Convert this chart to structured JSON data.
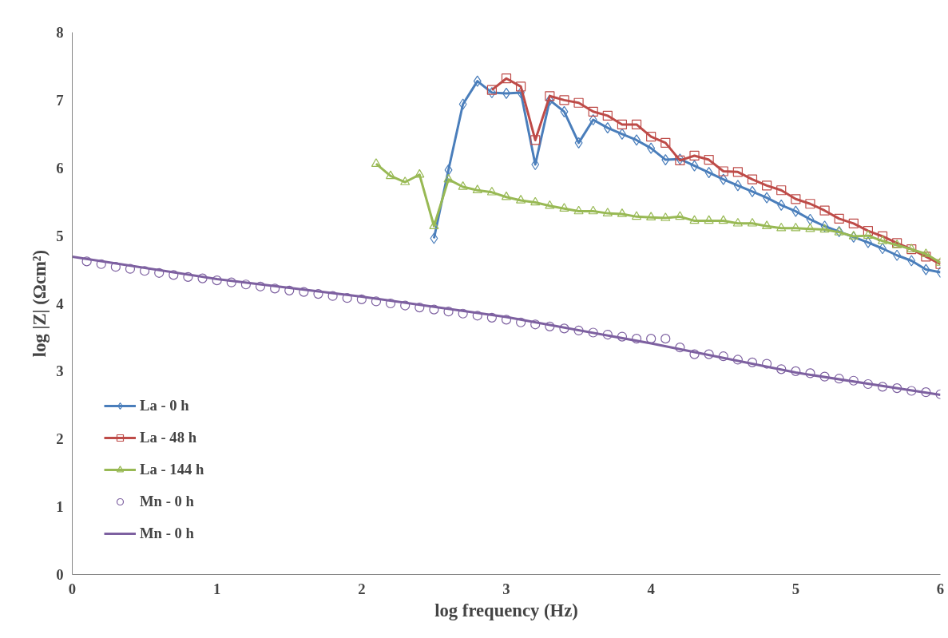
{
  "chart_data": {
    "type": "line",
    "xlabel": "log frequency (Hz)",
    "ylabel": "log |Z| (Ωcm²)",
    "xlim": [
      0,
      6
    ],
    "ylim": [
      0,
      8
    ],
    "xticks": [
      0,
      1,
      2,
      3,
      4,
      5,
      6
    ],
    "yticks": [
      0,
      1,
      2,
      3,
      4,
      5,
      6,
      7,
      8
    ],
    "grid": false,
    "legend": "bottom left",
    "series": [
      {
        "name": "La - 0 h",
        "color": "#4a7ebb",
        "marker": "diamond",
        "x": [
          2.5,
          2.6,
          2.7,
          2.8,
          2.9,
          3.0,
          3.1,
          3.2,
          3.3,
          3.4,
          3.5,
          3.6,
          3.7,
          3.8,
          3.9,
          4.0,
          4.1,
          4.2,
          4.3,
          4.4,
          4.5,
          4.6,
          4.7,
          4.8,
          4.9,
          5.0,
          5.1,
          5.2,
          5.3,
          5.4,
          5.5,
          5.6,
          5.7,
          5.8,
          5.9,
          6.0
        ],
        "values": [
          4.96,
          5.97,
          6.94,
          7.28,
          7.11,
          7.1,
          7.11,
          6.05,
          7.0,
          6.83,
          6.37,
          6.71,
          6.59,
          6.5,
          6.41,
          6.29,
          6.12,
          6.13,
          6.03,
          5.93,
          5.83,
          5.74,
          5.65,
          5.56,
          5.45,
          5.36,
          5.24,
          5.14,
          5.06,
          4.98,
          4.9,
          4.81,
          4.71,
          4.63,
          4.5,
          4.46
        ]
      },
      {
        "name": "La - 48 h",
        "color": "#be4b48",
        "marker": "square",
        "x": [
          2.9,
          3.0,
          3.1,
          3.2,
          3.3,
          3.4,
          3.5,
          3.6,
          3.7,
          3.8,
          3.9,
          4.0,
          4.1,
          4.2,
          4.3,
          4.4,
          4.5,
          4.6,
          4.7,
          4.8,
          4.9,
          5.0,
          5.1,
          5.2,
          5.3,
          5.4,
          5.5,
          5.6,
          5.7,
          5.8,
          5.9,
          6.0
        ],
        "values": [
          7.15,
          7.32,
          7.2,
          6.41,
          7.06,
          7.0,
          6.96,
          6.83,
          6.77,
          6.64,
          6.64,
          6.46,
          6.37,
          6.11,
          6.18,
          6.12,
          5.95,
          5.94,
          5.83,
          5.74,
          5.67,
          5.54,
          5.47,
          5.37,
          5.25,
          5.18,
          5.07,
          4.99,
          4.89,
          4.8,
          4.69,
          4.58
        ]
      },
      {
        "name": "La - 144 h",
        "color": "#98b954",
        "marker": "triangle",
        "x": [
          2.1,
          2.2,
          2.3,
          2.4,
          2.5,
          2.6,
          2.7,
          2.8,
          2.9,
          3.0,
          3.1,
          3.2,
          3.3,
          3.4,
          3.5,
          3.6,
          3.7,
          3.8,
          3.9,
          4.0,
          4.1,
          4.2,
          4.3,
          4.4,
          4.5,
          4.6,
          4.7,
          4.8,
          4.9,
          5.0,
          5.1,
          5.2,
          5.3,
          5.4,
          5.5,
          5.6,
          5.7,
          5.8,
          5.9,
          6.0
        ],
        "values": [
          6.06,
          5.88,
          5.79,
          5.9,
          5.14,
          5.83,
          5.72,
          5.67,
          5.64,
          5.57,
          5.52,
          5.49,
          5.44,
          5.4,
          5.36,
          5.36,
          5.33,
          5.32,
          5.28,
          5.27,
          5.26,
          5.28,
          5.22,
          5.22,
          5.22,
          5.18,
          5.18,
          5.14,
          5.11,
          5.11,
          5.1,
          5.09,
          5.05,
          4.99,
          5.0,
          4.92,
          4.86,
          4.8,
          4.73,
          4.6
        ]
      },
      {
        "name": "Mn - 0 h",
        "color": "#7d60a0",
        "type": "scatter",
        "marker": "circle",
        "x": [
          0.1,
          0.2,
          0.3,
          0.4,
          0.5,
          0.6,
          0.7,
          0.8,
          0.9,
          1.0,
          1.1,
          1.2,
          1.3,
          1.4,
          1.5,
          1.6,
          1.7,
          1.8,
          1.9,
          2.0,
          2.1,
          2.2,
          2.3,
          2.4,
          2.5,
          2.6,
          2.7,
          2.8,
          2.9,
          3.0,
          3.1,
          3.2,
          3.3,
          3.4,
          3.5,
          3.6,
          3.7,
          3.8,
          3.9,
          4.0,
          4.1,
          4.2,
          4.3,
          4.4,
          4.5,
          4.6,
          4.7,
          4.8,
          4.9,
          5.0,
          5.1,
          5.2,
          5.3,
          5.4,
          5.5,
          5.6,
          5.7,
          5.8,
          5.9,
          6.0
        ],
        "values": [
          4.62,
          4.58,
          4.54,
          4.51,
          4.48,
          4.45,
          4.42,
          4.39,
          4.37,
          4.34,
          4.31,
          4.28,
          4.25,
          4.22,
          4.19,
          4.17,
          4.14,
          4.11,
          4.08,
          4.06,
          4.03,
          4.0,
          3.97,
          3.94,
          3.91,
          3.88,
          3.85,
          3.82,
          3.79,
          3.76,
          3.72,
          3.69,
          3.66,
          3.63,
          3.6,
          3.57,
          3.54,
          3.51,
          3.48,
          3.48,
          3.48,
          3.35,
          3.25,
          3.25,
          3.22,
          3.17,
          3.13,
          3.11,
          3.03,
          3.0,
          2.97,
          2.92,
          2.89,
          2.86,
          2.81,
          2.77,
          2.75,
          2.71,
          2.69,
          2.66
        ]
      },
      {
        "name": "Mn - 0 h",
        "color": "#7d60a0",
        "type": "line",
        "marker": "none",
        "x": [
          0,
          1,
          2,
          3,
          4,
          5,
          6
        ],
        "values": [
          4.69,
          4.36,
          4.1,
          3.8,
          3.41,
          2.98,
          2.65
        ]
      }
    ]
  }
}
